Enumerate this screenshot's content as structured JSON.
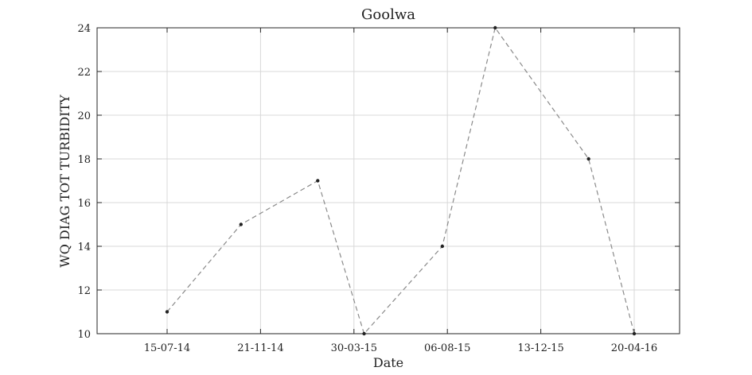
{
  "chart_data": {
    "type": "line",
    "title": "Goolwa",
    "xlabel": "Date",
    "ylabel": "WQ DIAG TOT TURBIDITY",
    "x_ticks": [
      "15-07-14",
      "21-11-14",
      "30-03-15",
      "06-08-15",
      "13-12-15",
      "20-04-16"
    ],
    "ylim": [
      10,
      24
    ],
    "y_ticks": [
      10,
      12,
      14,
      16,
      18,
      20,
      22,
      24
    ],
    "grid": true,
    "series": [
      {
        "style": "dashed gray line with black markers",
        "x": [
          "15-07-14",
          "25-10-14",
          "08-02-15",
          "13-04-15",
          "30-07-15",
          "11-10-15",
          "17-02-16",
          "20-04-16"
        ],
        "y": [
          11,
          15,
          17,
          10,
          14,
          24,
          18,
          10
        ]
      }
    ],
    "colors": {
      "line": "#8a8a8a",
      "marker": "#222222",
      "grid": "#d8d8d8",
      "axis": "#262626"
    }
  }
}
